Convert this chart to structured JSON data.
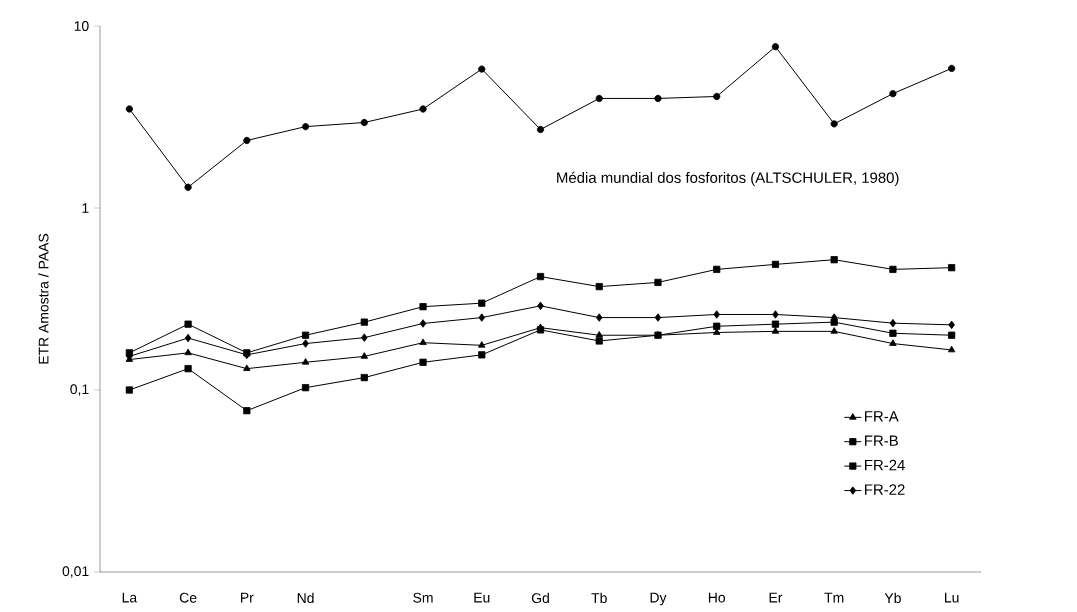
{
  "chart_data": {
    "type": "line",
    "ylabel": "ETR Amostra / PAAS",
    "categories": [
      "La",
      "Ce",
      "Pr",
      "Nd",
      null,
      "Sm",
      "Eu",
      "Gd",
      "Tb",
      "Dy",
      "Ho",
      "Er",
      "Tm",
      "Yb",
      "Lu"
    ],
    "log": "y",
    "ylim": [
      0.01,
      10
    ],
    "yticks": [
      {
        "value": 0.01,
        "label": "0,01"
      },
      {
        "value": 0.1,
        "label": "0,1"
      },
      1,
      10
    ],
    "annotations": [
      "Média mundial dos fosforitos (ALTSCHULER, 1980)"
    ],
    "grid": false,
    "legend": "bottom right",
    "line_style": "solid",
    "series": [
      {
        "color": "#000000",
        "marker": "circle",
        "values": [
          3.5,
          1.3,
          2.35,
          2.8,
          2.95,
          3.5,
          5.8,
          2.7,
          4.0,
          4.0,
          4.1,
          7.7,
          2.9,
          4.25,
          5.85
        ]
      },
      {
        "name": "FR-A",
        "color": "#000000",
        "marker": "triangle",
        "values": [
          0.147,
          0.16,
          0.131,
          0.142,
          0.153,
          0.182,
          0.176,
          0.22,
          0.2,
          0.2,
          0.207,
          0.21,
          0.21,
          0.18,
          0.166
        ]
      },
      {
        "name": "FR-B",
        "color": "#000000",
        "marker": "square",
        "values": [
          0.1,
          0.131,
          0.077,
          0.103,
          0.117,
          0.142,
          0.156,
          0.214,
          0.186,
          0.2,
          0.224,
          0.23,
          0.236,
          0.205,
          0.2
        ]
      },
      {
        "name": "FR-24",
        "color": "#000000",
        "marker": "square",
        "values": [
          0.16,
          0.23,
          0.16,
          0.2,
          0.236,
          0.287,
          0.3,
          0.42,
          0.37,
          0.39,
          0.46,
          0.49,
          0.52,
          0.46,
          0.47
        ]
      },
      {
        "name": "FR-22",
        "color": "#000000",
        "marker": "diamond",
        "values": [
          0.153,
          0.193,
          0.156,
          0.18,
          0.194,
          0.232,
          0.25,
          0.29,
          0.25,
          0.25,
          0.26,
          0.26,
          0.25,
          0.233,
          0.228
        ]
      }
    ]
  }
}
